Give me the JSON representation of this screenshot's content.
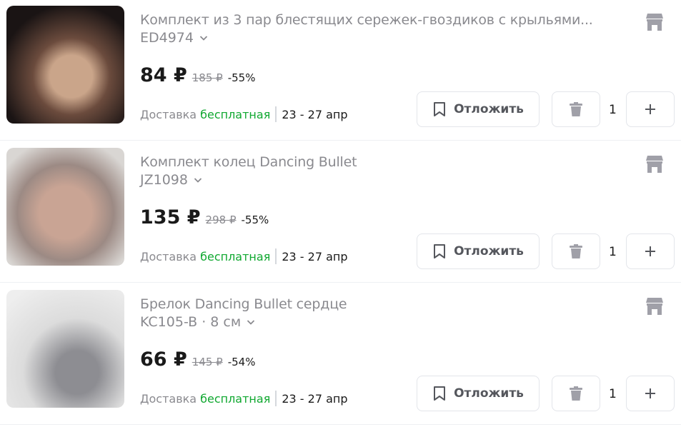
{
  "items": [
    {
      "title": "Комплект из 3 пар блестящих сережек-гвоздиков с крыльями...",
      "variant": "ED4974",
      "price": "84 ₽",
      "old_price": "185 ₽",
      "discount": "-55%",
      "delivery_label": "Доставка",
      "delivery_type": "бесплатная",
      "delivery_date": "23 - 27 апр",
      "save_label": "Отложить",
      "quantity": "1",
      "image": "earrings-photo"
    },
    {
      "title": "Комплект колец Dancing Bullet",
      "variant": "JZ1098",
      "price": "135 ₽",
      "old_price": "298 ₽",
      "discount": "-55%",
      "delivery_label": "Доставка",
      "delivery_type": "бесплатная",
      "delivery_date": "23 - 27 апр",
      "save_label": "Отложить",
      "quantity": "1",
      "image": "rings-photo"
    },
    {
      "title": "Брелок Dancing Bullet сердце",
      "variant": "KC105-B · 8 см",
      "price": "66 ₽",
      "old_price": "145 ₽",
      "discount": "-54%",
      "delivery_label": "Доставка",
      "delivery_type": "бесплатная",
      "delivery_date": "23 - 27 апр",
      "save_label": "Отложить",
      "quantity": "1",
      "image": "keychain-photo"
    }
  ],
  "colors": {
    "free_delivery": "#10a830",
    "muted_text": "#8a8a8f",
    "icon": "#a0a0a8"
  },
  "icons": [
    "store-icon",
    "chevron-down-icon",
    "bookmark-icon",
    "trash-icon",
    "plus-icon"
  ]
}
